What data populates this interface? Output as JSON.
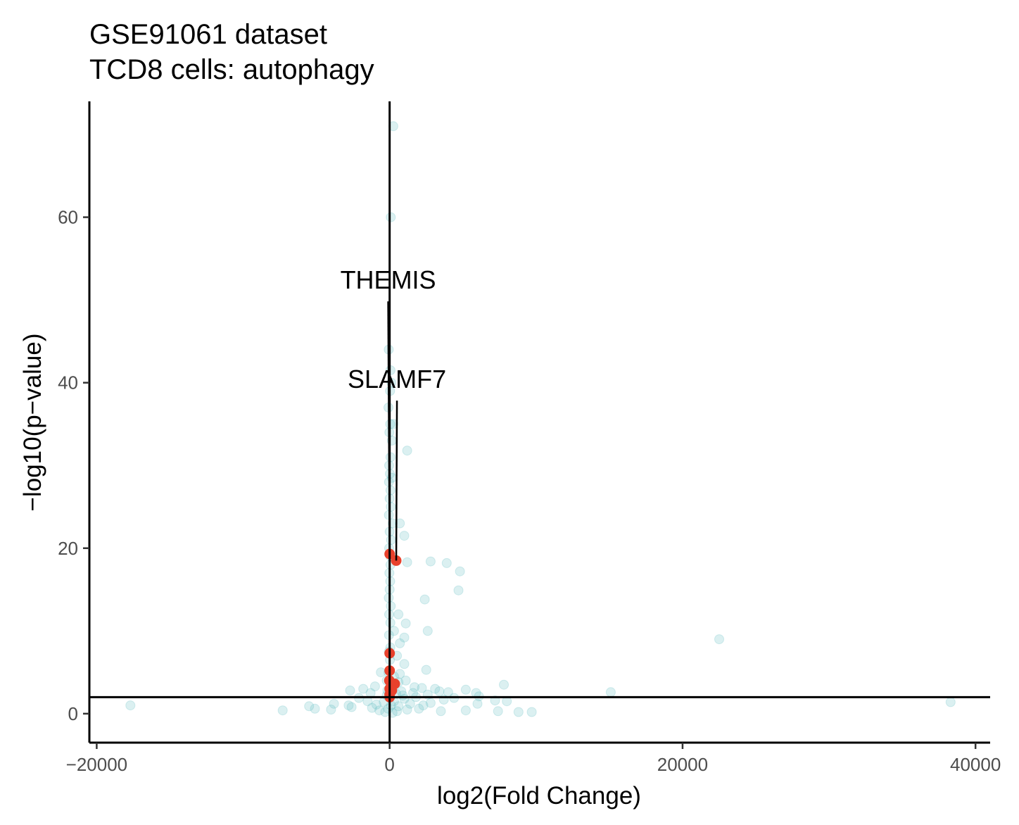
{
  "chart_data": {
    "type": "scatter",
    "title_line1": "GSE91061 dataset",
    "title_line2": "TCD8 cells: autophagy",
    "xlabel": "log2(Fold Change)",
    "ylabel": "−log10(p−value)",
    "xlim": [
      -20500,
      41000
    ],
    "ylim": [
      -3.5,
      74
    ],
    "x_ticks": [
      -20000,
      0,
      20000,
      40000
    ],
    "x_tick_labels": [
      "−20000",
      "0",
      "20000",
      "40000"
    ],
    "y_ticks": [
      0,
      20,
      40,
      60
    ],
    "y_tick_labels": [
      "0",
      "20",
      "40",
      "60"
    ],
    "reference_lines": {
      "vertical_x": 0,
      "horizontal_y": 2
    },
    "colors": {
      "background_points": "#5bbcbf",
      "highlight_points": "#e8412c",
      "lines": "#000000"
    },
    "series": [
      {
        "role": "background",
        "points": [
          [
            250,
            71
          ],
          [
            80,
            60
          ],
          [
            -60,
            44
          ],
          [
            60,
            41.5
          ],
          [
            120,
            40
          ],
          [
            30,
            39
          ],
          [
            -80,
            37
          ],
          [
            40,
            35
          ],
          [
            250,
            35
          ],
          [
            -20,
            34
          ],
          [
            150,
            33
          ],
          [
            1200,
            31.8
          ],
          [
            60,
            31
          ],
          [
            -30,
            30
          ],
          [
            20,
            29
          ],
          [
            150,
            28.5
          ],
          [
            -40,
            28
          ],
          [
            60,
            27
          ],
          [
            0,
            26
          ],
          [
            80,
            25
          ],
          [
            -50,
            24
          ],
          [
            200,
            23
          ],
          [
            700,
            23
          ],
          [
            0,
            22
          ],
          [
            1000,
            21.5
          ],
          [
            100,
            21
          ],
          [
            -30,
            20
          ],
          [
            50,
            19
          ],
          [
            1200,
            18.3
          ],
          [
            2800,
            18.4
          ],
          [
            3900,
            18.2
          ],
          [
            4800,
            17.2
          ],
          [
            60,
            18
          ],
          [
            -20,
            17
          ],
          [
            40,
            16
          ],
          [
            4700,
            14.9
          ],
          [
            0,
            15
          ],
          [
            -60,
            14
          ],
          [
            2400,
            13.8
          ],
          [
            80,
            13
          ],
          [
            600,
            12
          ],
          [
            -30,
            12
          ],
          [
            1100,
            10.9
          ],
          [
            50,
            11
          ],
          [
            2600,
            10
          ],
          [
            300,
            10
          ],
          [
            -40,
            9.5
          ],
          [
            1000,
            9.2
          ],
          [
            22500,
            9
          ],
          [
            700,
            8.5
          ],
          [
            50,
            8
          ],
          [
            -50,
            7.5
          ],
          [
            500,
            7
          ],
          [
            20,
            6.5
          ],
          [
            1000,
            6
          ],
          [
            2500,
            5.3
          ],
          [
            -80,
            5
          ],
          [
            700,
            4.8
          ],
          [
            -600,
            5
          ],
          [
            300,
            4.5
          ],
          [
            1100,
            4
          ],
          [
            -200,
            4
          ],
          [
            600,
            3.8
          ],
          [
            7800,
            3.5
          ],
          [
            -1000,
            3.3
          ],
          [
            1700,
            3.2
          ],
          [
            2200,
            3.1
          ],
          [
            3100,
            3
          ],
          [
            -1800,
            3
          ],
          [
            -2700,
            2.8
          ],
          [
            3400,
            2.7
          ],
          [
            5200,
            2.9
          ],
          [
            4000,
            2.6
          ],
          [
            5900,
            2.5
          ],
          [
            15100,
            2.6
          ],
          [
            -1300,
            2.5
          ],
          [
            6100,
            2.1
          ],
          [
            2600,
            2.3
          ],
          [
            900,
            2.2
          ],
          [
            1800,
            2
          ],
          [
            4400,
            1.9
          ],
          [
            -2100,
            1.9
          ],
          [
            7200,
            1.6
          ],
          [
            8000,
            1.5
          ],
          [
            -1500,
            1.5
          ],
          [
            6000,
            1.2
          ],
          [
            -3800,
            1.2
          ],
          [
            -2800,
            1.0
          ],
          [
            -17700,
            1.0
          ],
          [
            38300,
            1.4
          ],
          [
            -5500,
            0.9
          ],
          [
            -5100,
            0.6
          ],
          [
            -4000,
            0.5
          ],
          [
            -7300,
            0.4
          ],
          [
            -2600,
            0.8
          ],
          [
            3500,
            0.3
          ],
          [
            5200,
            0.4
          ],
          [
            7400,
            0.3
          ],
          [
            8800,
            0.2
          ],
          [
            9700,
            0.2
          ],
          [
            -1200,
            0.7
          ],
          [
            -700,
            0.4
          ],
          [
            500,
            0.3
          ],
          [
            1200,
            0.5
          ],
          [
            2000,
            0.6
          ],
          [
            -300,
            0.2
          ],
          [
            100,
            1.0
          ],
          [
            300,
            1.5
          ],
          [
            -200,
            2.2
          ],
          [
            800,
            2.7
          ],
          [
            1400,
            1.2
          ],
          [
            2800,
            1.3
          ],
          [
            3700,
            1.7
          ],
          [
            -900,
            1.1
          ],
          [
            200,
            0.1
          ],
          [
            -100,
            0.6
          ],
          [
            600,
            0.9
          ],
          [
            1000,
            1.8
          ],
          [
            1600,
            2.5
          ],
          [
            2300,
            1.0
          ],
          [
            -400,
            1.4
          ],
          [
            150,
            3.2
          ],
          [
            -150,
            2.8
          ],
          [
            450,
            2.4
          ]
        ]
      },
      {
        "role": "highlight",
        "points": [
          [
            0,
            19.3
          ],
          [
            450,
            18.5
          ],
          [
            0,
            7.3
          ],
          [
            0,
            5.2
          ],
          [
            -20,
            4.0
          ],
          [
            350,
            3.6
          ],
          [
            0,
            3.0
          ],
          [
            150,
            2.8
          ],
          [
            0,
            2.3
          ],
          [
            0,
            2.0
          ]
        ]
      }
    ],
    "annotations": [
      {
        "label": "THEMIS",
        "point": [
          0,
          19.3
        ],
        "label_at": [
          -100,
          50
        ]
      },
      {
        "label": "SLAMF7",
        "point": [
          450,
          18.5
        ],
        "label_at": [
          500,
          38
        ]
      }
    ]
  }
}
